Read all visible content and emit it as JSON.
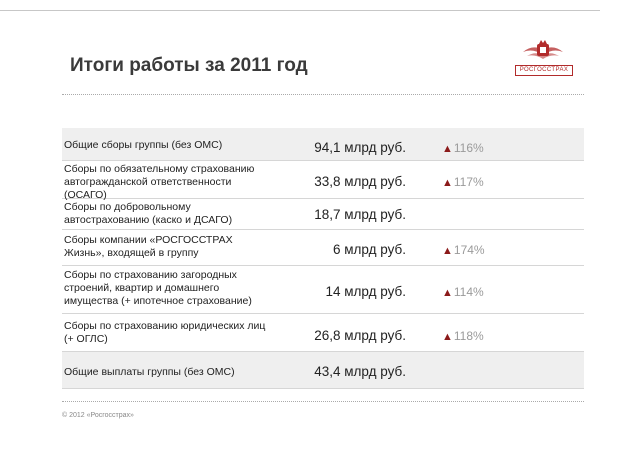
{
  "slide": {
    "title": "Итоги работы за 2011 год",
    "logo_text": "РОСГОССТРАХ",
    "footer": "© 2012 «Росгосстрах»",
    "accent_color": "#8b1a1a"
  },
  "rows": [
    {
      "label": "Общие сборы группы (без ОМС)",
      "amount": "94,1 млрд руб.",
      "change": "116%",
      "shaded": true
    },
    {
      "label": "Сборы по обязательному страхованию\nавтогражданской ответственности\n(ОСАГО)",
      "amount": "33,8 млрд руб.",
      "change": "117%",
      "shaded": false
    },
    {
      "label": "Сборы по добровольному\nавтострахованию (каско и ДСАГО)",
      "amount": "18,7 млрд руб.",
      "change": "",
      "shaded": false
    },
    {
      "label": "Сборы компании «РОСГОССТРАХ\nЖизнь», входящей в группу",
      "amount": "6 млрд руб.",
      "change": "174%",
      "shaded": false
    },
    {
      "label": "Сборы по страхованию загородных\nстроений, квартир и домашнего\nимущества (+ ипотечное страхование)",
      "amount": "14 млрд руб.",
      "change": "114%",
      "shaded": false
    },
    {
      "label": "Сборы по страхованию юридических лиц\n(+ ОГЛС)",
      "amount": "26,8 млрд руб.",
      "change": "118%",
      "shaded": false
    },
    {
      "label": "Общие выплаты группы (без ОМС)",
      "amount": "43,4 млрд руб.",
      "change": "",
      "shaded": true
    }
  ]
}
